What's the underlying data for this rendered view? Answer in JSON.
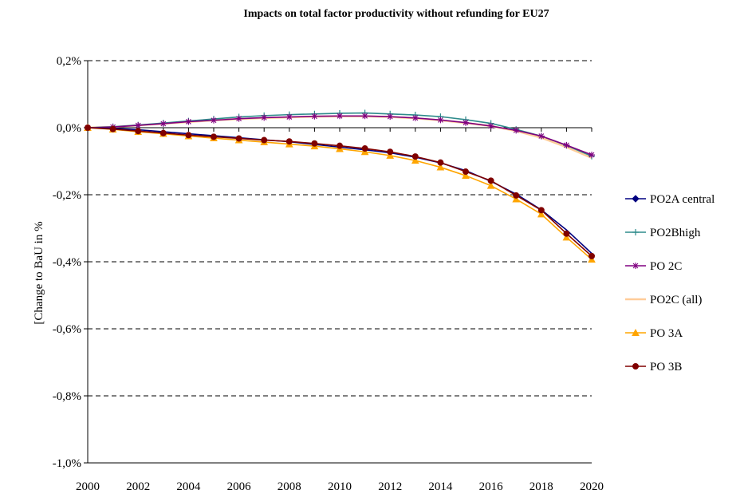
{
  "chart_data": {
    "type": "line",
    "title": "Impacts on total factor productivity without refunding for EU27",
    "ylabel": "[Change to BaU in %",
    "xlabel": "",
    "x": [
      2000,
      2001,
      2002,
      2003,
      2004,
      2005,
      2006,
      2007,
      2008,
      2009,
      2010,
      2011,
      2012,
      2013,
      2014,
      2015,
      2016,
      2017,
      2018,
      2019,
      2020
    ],
    "x_tick_labels": [
      "2000",
      "2002",
      "2004",
      "2006",
      "2008",
      "2010",
      "2012",
      "2014",
      "2016",
      "2018",
      "2020"
    ],
    "y_tick_values": [
      0.2,
      0.0,
      -0.2,
      -0.4,
      -0.6,
      -0.8,
      -1.0
    ],
    "y_tick_labels": [
      "0,2%",
      "0,0%",
      "-0,2%",
      "-0,4%",
      "-0,6%",
      "-0,8%",
      "-1,0%"
    ],
    "ylim": [
      -1.0,
      0.2
    ],
    "xlim": [
      2000,
      2020
    ],
    "grid": "horizontal dashed",
    "legend_position": "right",
    "series": [
      {
        "name": "PO2A central",
        "color": "#000080",
        "marker": "diamond",
        "show_marker": false,
        "values": [
          0.0,
          -0.002,
          -0.006,
          -0.012,
          -0.018,
          -0.024,
          -0.03,
          -0.036,
          -0.042,
          -0.05,
          -0.058,
          -0.066,
          -0.075,
          -0.088,
          -0.105,
          -0.128,
          -0.16,
          -0.198,
          -0.245,
          -0.305,
          -0.375
        ]
      },
      {
        "name": "PO2Bhigh",
        "color": "#2e8b8b",
        "marker": "plus",
        "show_marker": true,
        "values": [
          0.0,
          0.003,
          0.008,
          0.014,
          0.02,
          0.026,
          0.032,
          0.036,
          0.039,
          0.041,
          0.043,
          0.044,
          0.041,
          0.038,
          0.033,
          0.024,
          0.013,
          -0.005,
          -0.025,
          -0.053,
          -0.085
        ]
      },
      {
        "name": "PO 2C",
        "color": "#800080",
        "marker": "star",
        "show_marker": true,
        "values": [
          0.0,
          0.002,
          0.007,
          0.012,
          0.018,
          0.022,
          0.027,
          0.03,
          0.032,
          0.034,
          0.035,
          0.035,
          0.033,
          0.029,
          0.023,
          0.015,
          0.005,
          -0.008,
          -0.025,
          -0.052,
          -0.081
        ]
      },
      {
        "name": "PO2C (all)",
        "color": "#ffcc99",
        "marker": "none",
        "show_marker": false,
        "values": [
          0.0,
          0.002,
          0.007,
          0.012,
          0.017,
          0.022,
          0.026,
          0.029,
          0.031,
          0.033,
          0.034,
          0.034,
          0.032,
          0.028,
          0.022,
          0.014,
          0.005,
          -0.01,
          -0.03,
          -0.058,
          -0.09
        ]
      },
      {
        "name": "PO 3A",
        "color": "#ffa500",
        "marker": "triangle",
        "show_marker": true,
        "values": [
          0.0,
          -0.005,
          -0.012,
          -0.018,
          -0.025,
          -0.031,
          -0.037,
          -0.043,
          -0.049,
          -0.055,
          -0.063,
          -0.072,
          -0.083,
          -0.098,
          -0.118,
          -0.143,
          -0.173,
          -0.213,
          -0.258,
          -0.327,
          -0.393
        ]
      },
      {
        "name": "PO 3B",
        "color": "#800000",
        "marker": "circle",
        "show_marker": true,
        "values": [
          0.0,
          -0.004,
          -0.01,
          -0.016,
          -0.022,
          -0.027,
          -0.032,
          -0.037,
          -0.041,
          -0.047,
          -0.054,
          -0.062,
          -0.072,
          -0.086,
          -0.104,
          -0.131,
          -0.158,
          -0.202,
          -0.246,
          -0.316,
          -0.383
        ]
      }
    ]
  }
}
